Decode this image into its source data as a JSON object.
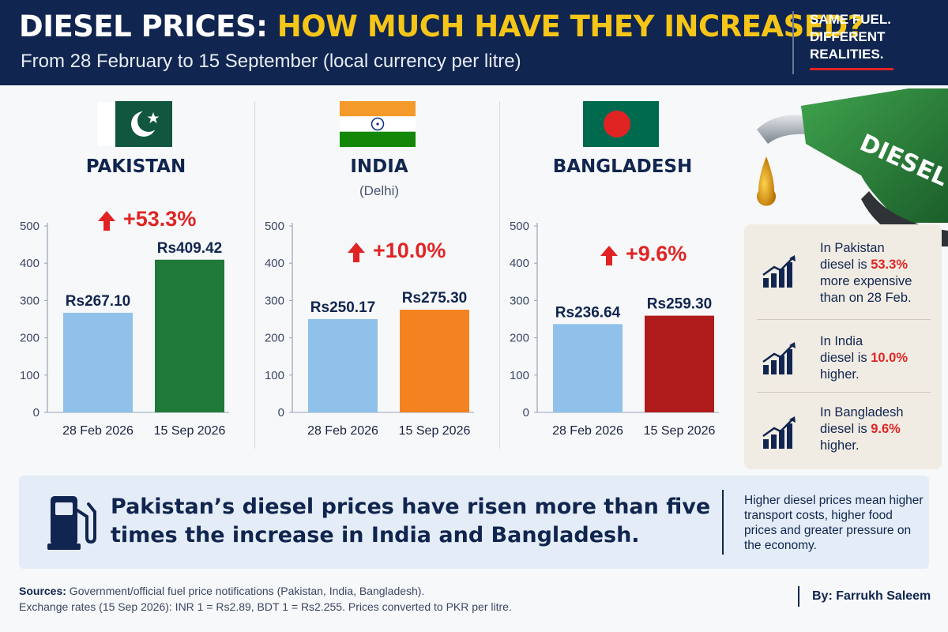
{
  "header": {
    "title_part1": "DIESEL PRICES: ",
    "title_part2": "HOW MUCH HAVE THEY INCREASED?",
    "subtitle": "From 28 February to 15 September (local currency per litre)",
    "tagline": [
      "SAME FUEL.",
      "DIFFERENT",
      "REALITIES."
    ]
  },
  "colors": {
    "header_bg": "#10254f",
    "title_highlight": "#f5c518",
    "increase_red": "#e02424",
    "feb_bar": "#8fc1ea",
    "pakistan_sep": "#1f7a3a",
    "india_sep": "#f58220",
    "bangladesh_sep": "#b01c1c"
  },
  "chart_data": [
    {
      "type": "bar",
      "title": "PAKISTAN",
      "subtitle": "",
      "categories": [
        "28 Feb 2026",
        "15 Sep 2026"
      ],
      "values": [
        267.1,
        409.42
      ],
      "value_labels": [
        "Rs267.10",
        "Rs409.42"
      ],
      "change": "+53.3%",
      "ylim": [
        0,
        500
      ],
      "yticks": [
        0,
        100,
        200,
        300,
        400,
        500
      ]
    },
    {
      "type": "bar",
      "title": "INDIA",
      "subtitle": "(Delhi)",
      "categories": [
        "28 Feb 2026",
        "15 Sep 2026"
      ],
      "values": [
        250.17,
        275.3
      ],
      "value_labels": [
        "Rs250.17",
        "Rs275.30"
      ],
      "change": "+10.0%",
      "ylim": [
        0,
        500
      ],
      "yticks": [
        0,
        100,
        200,
        300,
        400,
        500
      ]
    },
    {
      "type": "bar",
      "title": "BANGLADESH",
      "subtitle": "",
      "categories": [
        "28 Feb 2026",
        "15 Sep 2026"
      ],
      "values": [
        236.64,
        259.3
      ],
      "value_labels": [
        "Rs236.64",
        "Rs259.30"
      ],
      "change": "+9.6%",
      "ylim": [
        0,
        500
      ],
      "yticks": [
        0,
        100,
        200,
        300,
        400,
        500
      ]
    }
  ],
  "pump_label": "DIESEL",
  "side_notes": [
    {
      "pre": "In Pakistan",
      "mid_pre": "diesel is ",
      "highlight": "53.3%",
      "mid_post": "",
      "lines_after": [
        "more expensive",
        "than on 28 Feb."
      ]
    },
    {
      "pre": "In India",
      "mid_pre": "diesel is ",
      "highlight": "10.0%",
      "mid_post": "",
      "lines_after": [
        "higher."
      ]
    },
    {
      "pre": "In Bangladesh",
      "mid_pre": "diesel is ",
      "highlight": "9.6%",
      "mid_post": "",
      "lines_after": [
        "higher."
      ]
    }
  ],
  "summary": {
    "main": "Pakistan’s diesel prices have risen more than five times the increase in India and Bangladesh.",
    "note": "Higher diesel prices mean higher transport costs, higher food prices and greater pressure on the economy."
  },
  "sources": {
    "label": "Sources:",
    "line1": " Government/official fuel price notifications (Pakistan, India, Bangladesh).",
    "line2": "Exchange rates (15 Sep 2026): INR 1 = Rs2.89, BDT 1 = Rs2.255. Prices converted to PKR per litre."
  },
  "byline": "By: Farrukh Saleem"
}
